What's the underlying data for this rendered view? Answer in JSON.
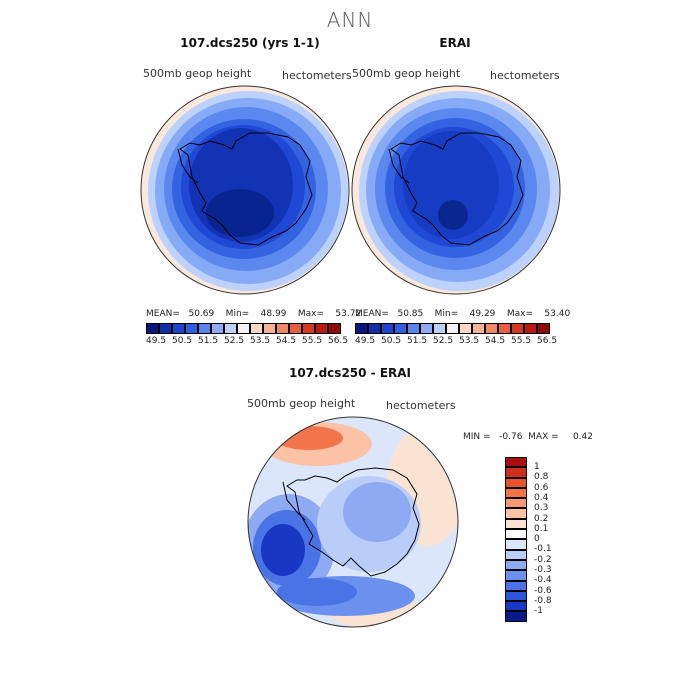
{
  "main_title": "ANN",
  "panels": [
    {
      "title": "107.dcs250 (yrs 1-1)",
      "field_label": "500mb  geop  height",
      "units_label": "hectometers",
      "stats_text": "MEAN=   50.69    Min=    48.99    Max=    53.72",
      "colors": {
        "outer": "#fbe8dc",
        "ring1": "#bcd1fb",
        "ring2": "#86aaf6",
        "ring3": "#5b88ee",
        "ring4": "#3463e1",
        "ring5": "#1f48d4",
        "core": "#1133b4",
        "deep": "#08248f"
      }
    },
    {
      "title": "ERAI",
      "field_label": "500mb  geop  height",
      "units_label": "hectometers",
      "stats_text": "MEAN=   50.85    Min=    49.29    Max=    53.40",
      "colors": {
        "outer": "#fbe8dc",
        "ring1": "#bcd1fb",
        "ring2": "#86aaf6",
        "ring3": "#5b88ee",
        "ring4": "#3463e1",
        "ring5": "#1f48d4",
        "core": "#173cc4",
        "deep": "#0a268f"
      }
    }
  ],
  "colorbar_abs": {
    "colors": [
      "#08187a",
      "#102ea6",
      "#1d46cc",
      "#2f5fdf",
      "#5a86ec",
      "#8daaf2",
      "#bccff8",
      "#f6f1ee",
      "#fbd8c5",
      "#f8b395",
      "#f08868",
      "#e65f43",
      "#d6381f",
      "#b81a10",
      "#8c0a07"
    ],
    "tick_labels": [
      "49.5",
      "50.5",
      "51.5",
      "52.5",
      "53.5",
      "54.5",
      "55.5",
      "56.5"
    ]
  },
  "diff_panel": {
    "title": "107.dcs250 - ERAI",
    "field_label": "500mb  geop  height",
    "units_label": "hectometers",
    "stats_text": "MIN =   -0.76  MAX =     0.42"
  },
  "colorbar_diff": {
    "colors_top_to_bottom": [
      "#a50f0f",
      "#d02e1c",
      "#e8512e",
      "#f2744a",
      "#f79b76",
      "#fbc2a6",
      "#fbe3d3",
      "#ffffff",
      "#dbe6fb",
      "#b9cdf8",
      "#8daaf2",
      "#6b90ee",
      "#4a73e6",
      "#2c57dc",
      "#1838c4",
      "#081a8a"
    ],
    "tick_labels_top_to_bottom": [
      "1",
      "0.8",
      "0.6",
      "0.4",
      "0.3",
      "0.2",
      "0.1",
      "0",
      "-0.1",
      "-0.2",
      "-0.3",
      "-0.4",
      "-0.6",
      "-0.8",
      "-1"
    ]
  }
}
